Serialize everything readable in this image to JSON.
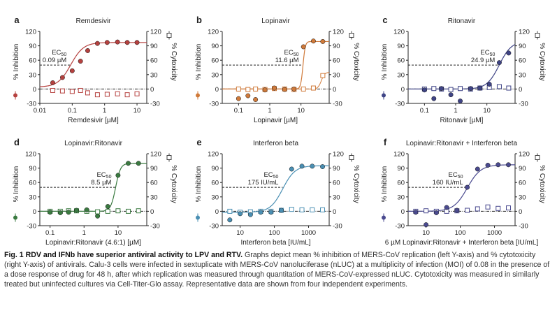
{
  "figure": {
    "left_axis_label": "% Inhibition",
    "right_axis_label": "% Cytoxicity"
  },
  "chart_data": [
    {
      "type": "scatter",
      "panel": "a",
      "title": "Remdesivir",
      "xlabel": "Remdesivir [µM]",
      "xscale": "log",
      "xlim": [
        0.01,
        20
      ],
      "xticks": [
        0.01,
        0.1,
        1,
        10
      ],
      "xtick_labels": [
        "0.01",
        "0.1",
        "1",
        "10"
      ],
      "ylim": [
        -30,
        120
      ],
      "yticks": [
        -30,
        0,
        30,
        60,
        90,
        120
      ],
      "y2ticks": [
        -30,
        0,
        30,
        60,
        90,
        120
      ],
      "color": "#b5413f",
      "ec50": {
        "label": "EC",
        "sub": "50",
        "value": "0.09 µM",
        "x": 0.09,
        "y": 50
      },
      "curve": {
        "bottom": 4,
        "top": 97,
        "ec50": 0.09,
        "hill": 2.2
      },
      "series": [
        {
          "name": "Inhibition",
          "x": [
            0.025,
            0.05,
            0.1,
            0.18,
            0.3,
            0.6,
            1.2,
            2.5,
            5,
            10
          ],
          "y": [
            13,
            24,
            38,
            58,
            80,
            95,
            97,
            98,
            97,
            97
          ]
        },
        {
          "name": "Cytotoxicity",
          "x": [
            0.025,
            0.05,
            0.1,
            0.18,
            0.3,
            0.6,
            1.2,
            2.5,
            5,
            10
          ],
          "y": [
            -3,
            -4,
            -5,
            -3,
            -8,
            -12,
            -11,
            -10,
            -12,
            -10
          ]
        }
      ]
    },
    {
      "type": "scatter",
      "panel": "b",
      "title": "Lopinavir",
      "xlabel": "Lopinavir [µM]",
      "xscale": "log",
      "xlim": [
        0.03,
        80
      ],
      "xticks": [
        0.1,
        1,
        10
      ],
      "xtick_labels": [
        "0.1",
        "1",
        "10"
      ],
      "ylim": [
        -30,
        120
      ],
      "yticks": [
        -30,
        0,
        30,
        60,
        90,
        120
      ],
      "y2ticks": [
        -30,
        0,
        30,
        60,
        90,
        120
      ],
      "color": "#d07a3a",
      "ec50": {
        "label": "EC",
        "sub": "50",
        "value": "11.6 µM",
        "x": 11.6,
        "y": 50
      },
      "curve": {
        "bottom": 0,
        "top": 99,
        "ec50": 11.6,
        "hill": 12
      },
      "cyto_curve": {
        "bottom": 0,
        "top": 35,
        "ec50": 45,
        "hill": 8
      },
      "series": [
        {
          "name": "Inhibition",
          "x": [
            0.1,
            0.2,
            0.35,
            0.7,
            1.4,
            3,
            6,
            12,
            25,
            50
          ],
          "y": [
            -20,
            -14,
            -22,
            -2,
            2,
            -1,
            0,
            88,
            100,
            99
          ]
        },
        {
          "name": "Cytotoxicity",
          "x": [
            0.1,
            0.2,
            0.35,
            0.7,
            1.4,
            3,
            6,
            12,
            25,
            50
          ],
          "y": [
            0,
            -1,
            0,
            -1,
            1,
            0,
            -1,
            0,
            2,
            28
          ]
        }
      ]
    },
    {
      "type": "scatter",
      "panel": "c",
      "title": "Ritonavir",
      "xlabel": "Ritonavir [µM]",
      "xscale": "log",
      "xlim": [
        0.03,
        80
      ],
      "xticks": [
        0.1,
        1,
        10
      ],
      "xtick_labels": [
        "0.1",
        "1",
        "10"
      ],
      "ylim": [
        -30,
        120
      ],
      "yticks": [
        -30,
        0,
        30,
        60,
        90,
        120
      ],
      "y2ticks": [
        -30,
        0,
        30,
        60,
        90,
        120
      ],
      "color": "#3f4486",
      "ec50": {
        "label": "EC",
        "sub": "50",
        "value": "24.9 µM",
        "x": 24.9,
        "y": 50
      },
      "curve": {
        "bottom": 0,
        "top": 100,
        "ec50": 24.9,
        "hill": 2.2
      },
      "series": [
        {
          "name": "Inhibition",
          "x": [
            0.1,
            0.2,
            0.35,
            0.7,
            1.4,
            3,
            6,
            12,
            25,
            50
          ],
          "y": [
            -2,
            -20,
            1,
            -12,
            -25,
            1,
            2,
            10,
            55,
            75
          ]
        },
        {
          "name": "Cytotoxicity",
          "x": [
            0.1,
            0.2,
            0.35,
            0.7,
            1.4,
            3,
            6,
            12,
            25,
            50
          ],
          "y": [
            0,
            1,
            0,
            -1,
            1,
            0,
            2,
            3,
            5,
            2
          ]
        }
      ]
    },
    {
      "type": "scatter",
      "panel": "d",
      "title": "Lopinavir:Ritonavir",
      "xlabel": "Lopinavir:Ritonavir (4.6:1) [µM]",
      "xscale": "log",
      "xlim": [
        0.05,
        70
      ],
      "xticks": [
        0.1,
        1,
        10
      ],
      "xtick_labels": [
        "0.1",
        "1",
        "10"
      ],
      "ylim": [
        -30,
        120
      ],
      "yticks": [
        -30,
        0,
        30,
        60,
        90,
        120
      ],
      "y2ticks": [
        -30,
        0,
        30,
        60,
        90,
        120
      ],
      "color": "#3a7a40",
      "ec50": {
        "label": "EC",
        "sub": "50",
        "value": "8.5 µM",
        "x": 8.5,
        "y": 50
      },
      "curve": {
        "bottom": 0,
        "top": 100,
        "ec50": 8.5,
        "hill": 6
      },
      "series": [
        {
          "name": "Inhibition",
          "x": [
            0.1,
            0.2,
            0.35,
            0.6,
            1.2,
            2.5,
            5,
            10,
            20,
            40
          ],
          "y": [
            -2,
            -3,
            -2,
            2,
            3,
            -10,
            10,
            75,
            100,
            100
          ]
        },
        {
          "name": "Cytotoxicity",
          "x": [
            0.1,
            0.2,
            0.35,
            0.6,
            1.2,
            2.5,
            5,
            10,
            20,
            40
          ],
          "y": [
            0,
            0,
            1,
            1,
            0,
            -1,
            0,
            1,
            0,
            1
          ]
        }
      ]
    },
    {
      "type": "scatter",
      "panel": "e",
      "title": "Interferon beta",
      "xlabel": "Interferon beta [IU/mL]",
      "xscale": "log",
      "xlim": [
        3,
        4000
      ],
      "xticks": [
        10,
        100,
        1000
      ],
      "xtick_labels": [
        "10",
        "100",
        "1000"
      ],
      "ylim": [
        -30,
        120
      ],
      "yticks": [
        -30,
        0,
        30,
        60,
        90,
        120
      ],
      "y2ticks": [
        -30,
        0,
        30,
        60,
        90,
        120
      ],
      "color": "#4a8fb3",
      "ec50": {
        "label": "EC",
        "sub": "50",
        "value": "175 IU/mL",
        "x": 175,
        "y": 50
      },
      "curve": {
        "bottom": -2,
        "top": 95,
        "ec50": 175,
        "hill": 2.4
      },
      "series": [
        {
          "name": "Inhibition",
          "x": [
            5,
            10,
            20,
            40,
            80,
            160,
            320,
            640,
            1280,
            2560
          ],
          "y": [
            -18,
            -5,
            -7,
            -2,
            -2,
            2,
            88,
            94,
            94,
            93
          ]
        },
        {
          "name": "Cytotoxicity",
          "x": [
            5,
            10,
            20,
            40,
            80,
            160,
            320,
            640,
            1280,
            2560
          ],
          "y": [
            0,
            -2,
            -1,
            0,
            0,
            2,
            4,
            3,
            3,
            3
          ]
        }
      ]
    },
    {
      "type": "scatter",
      "panel": "f",
      "title": "Lopinavir:Ritonavir + Interferon beta",
      "xlabel": "6 µM Lopinavir:Ritonavir + Interferon beta [IU/mL]",
      "xscale": "log",
      "xlim": [
        3,
        4000
      ],
      "xticks": [
        10,
        100,
        1000
      ],
      "xtick_labels": [
        "10",
        "100",
        "1000"
      ],
      "ylim": [
        -30,
        120
      ],
      "yticks": [
        -30,
        0,
        30,
        60,
        90,
        120
      ],
      "y2ticks": [
        -30,
        0,
        30,
        60,
        90,
        120
      ],
      "color": "#4a4a8f",
      "ec50": {
        "label": "EC",
        "sub": "50",
        "value": "160 IU/mL",
        "x": 160,
        "y": 50
      },
      "curve": {
        "bottom": 0,
        "top": 97,
        "ec50": 160,
        "hill": 2.2
      },
      "series": [
        {
          "name": "Inhibition",
          "x": [
            5,
            10,
            20,
            40,
            80,
            160,
            320,
            640,
            1280,
            2560
          ],
          "y": [
            -2,
            -28,
            -3,
            8,
            2,
            50,
            88,
            96,
            97,
            97
          ]
        },
        {
          "name": "Cytotoxicity",
          "x": [
            5,
            10,
            20,
            40,
            80,
            160,
            320,
            640,
            1280,
            2560
          ],
          "y": [
            0,
            1,
            0,
            0,
            1,
            2,
            5,
            9,
            6,
            7
          ]
        }
      ]
    }
  ],
  "caption": {
    "title": "Fig. 1 RDV and IFNb have superior antiviral activity to LPV and RTV.",
    "body": " Graphs depict mean % inhibition of MERS-CoV replication (left Y-axis) and % cytotoxicity (right Y-axis) of antivirals. Calu-3 cells were infected in sextuplicate with MERS-CoV nanoluciferase (nLUC) at a multiplicity of infection (MOI) of 0.08 in the presence of a dose response of drug for 48 h, after which replication was measured through quantitation of MERS-CoV-expressed nLUC. Cytotoxicity was measured in similarly treated but uninfected cultures via Cell-Titer-Glo assay. Representative data are shown from four independent experiments."
  }
}
